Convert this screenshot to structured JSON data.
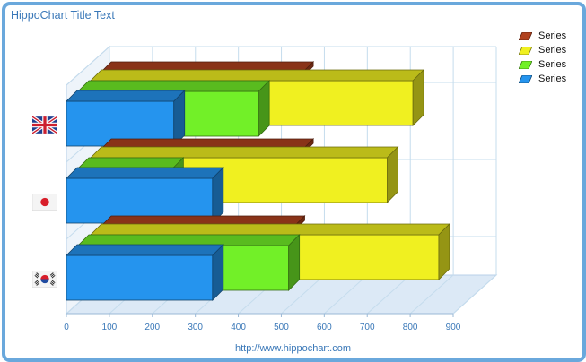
{
  "chart_data": {
    "type": "bar",
    "orientation": "horizontal-3d",
    "title": "HippoChart Title Text",
    "footer": "http://www.hippochart.com",
    "categories": [
      "United Kingdom flag",
      "Japan flag",
      "South Korea flag"
    ],
    "series": [
      {
        "name": "Series",
        "color": "#b0421f",
        "values": [
          470,
          470,
          450
        ]
      },
      {
        "name": "Series",
        "color": "#f0f020",
        "values": [
          750,
          690,
          810
        ]
      },
      {
        "name": "Series",
        "color": "#72f028",
        "values": [
          420,
          220,
          490
        ]
      },
      {
        "name": "Series",
        "color": "#2594ee",
        "values": [
          250,
          340,
          340
        ]
      }
    ],
    "xlim": [
      0,
      900
    ],
    "x_ticks": [
      "0",
      "100",
      "200",
      "300",
      "400",
      "500",
      "600",
      "700",
      "800",
      "900"
    ],
    "grid": true,
    "legend": "top-right"
  }
}
